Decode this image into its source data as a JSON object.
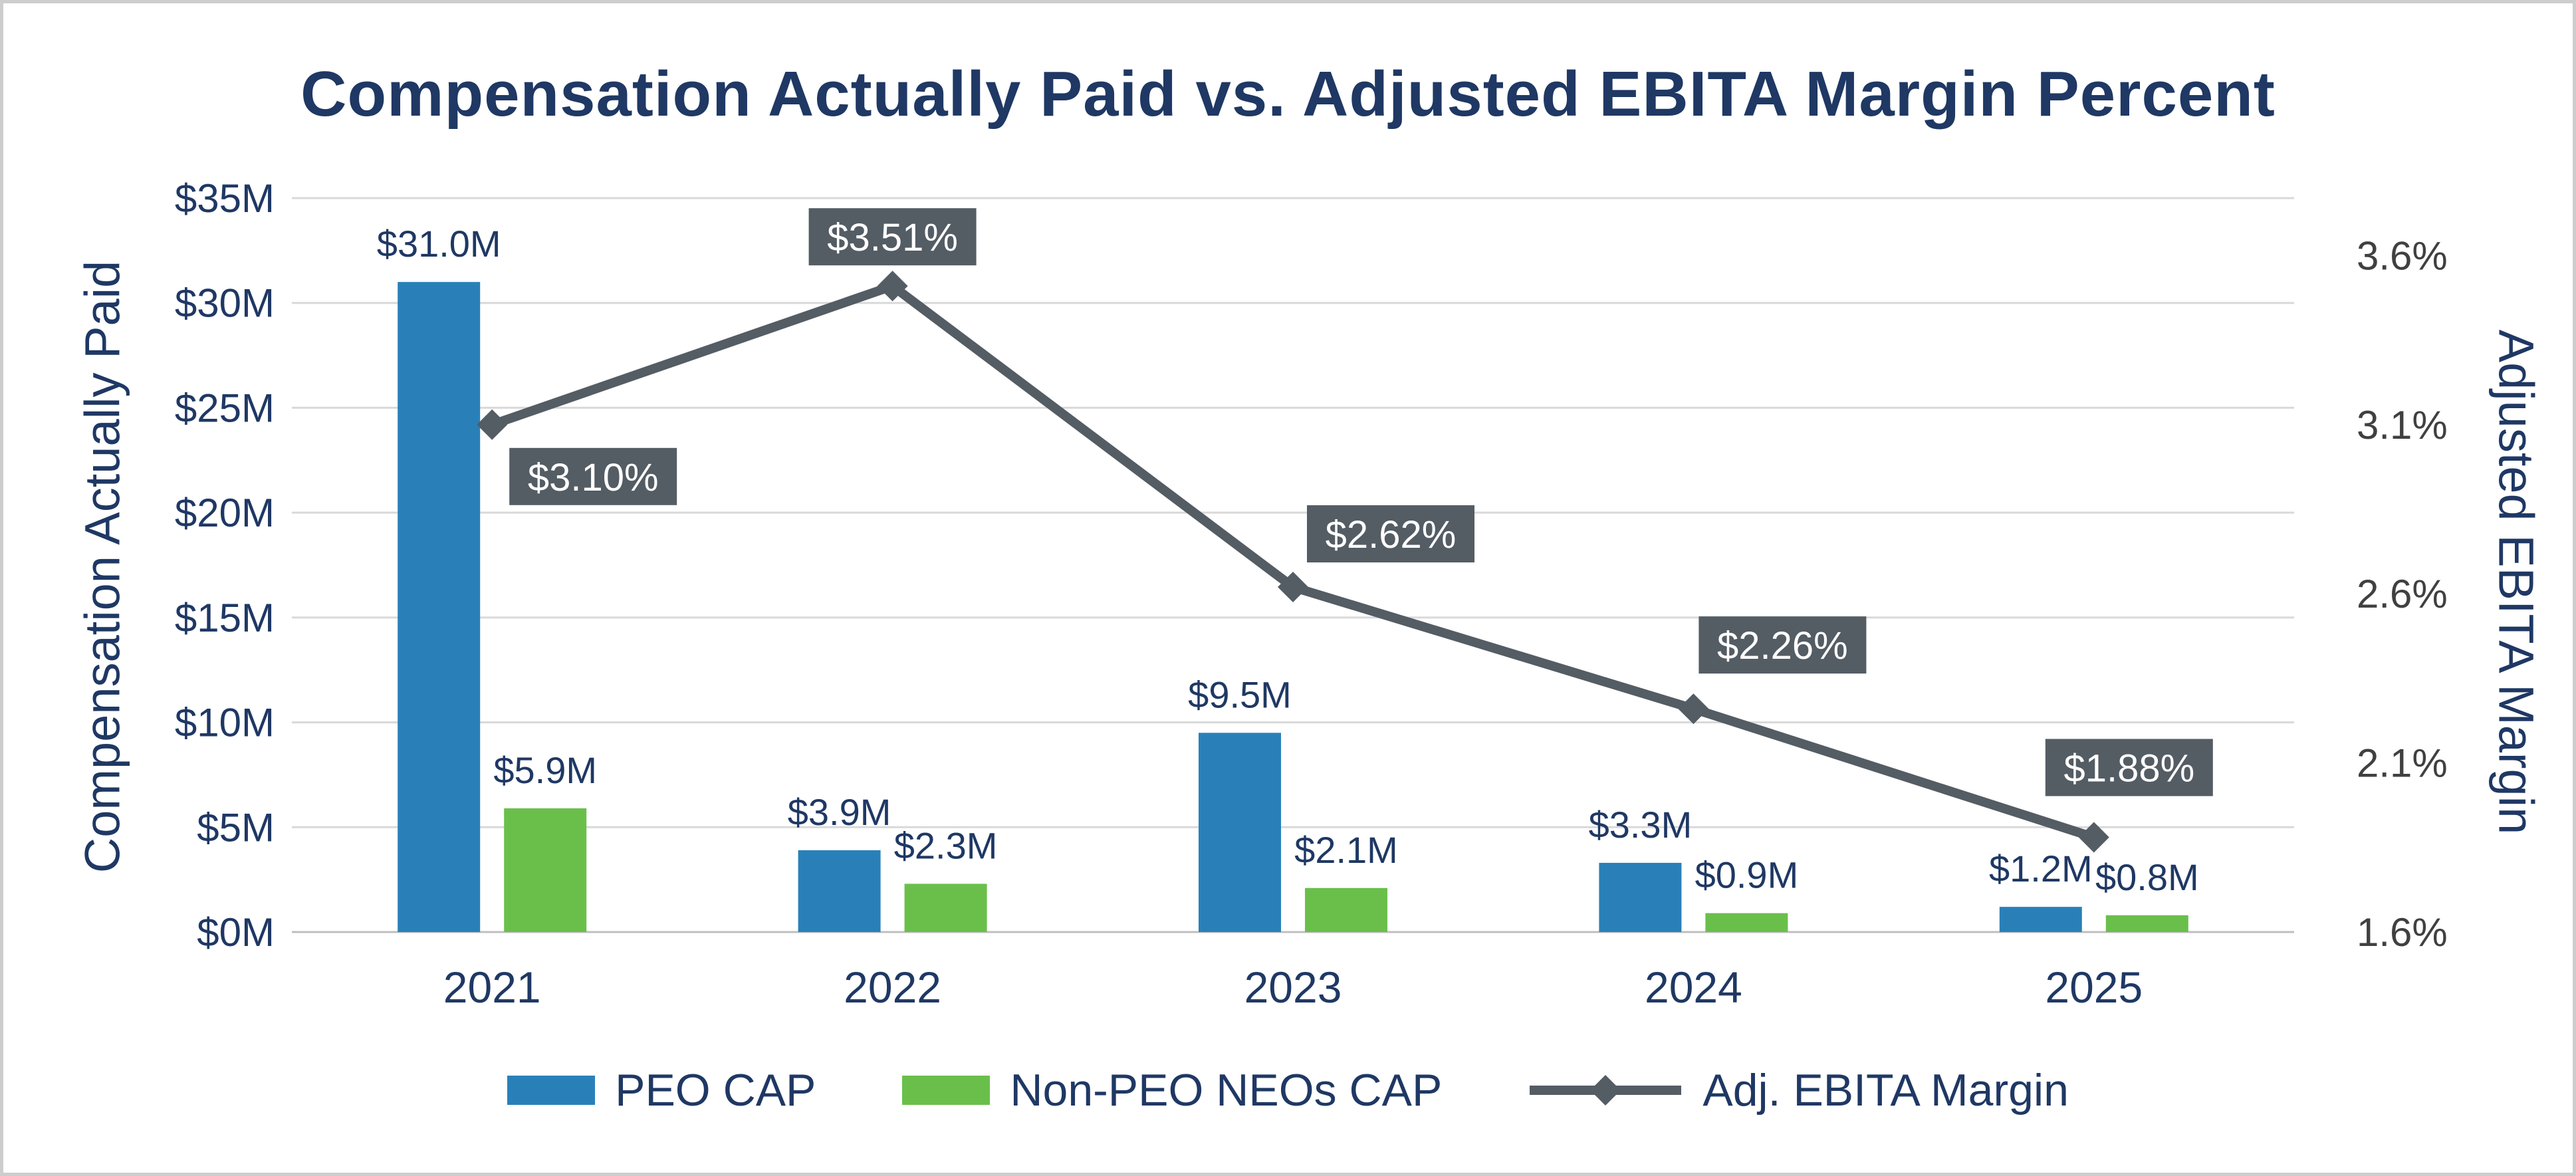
{
  "chart_data": {
    "type": "combo-bar-line",
    "title": "Compensation Actually Paid vs. Adjusted EBITA Margin Percent",
    "categories": [
      "2021",
      "2022",
      "2023",
      "2024",
      "2025"
    ],
    "left_axis": {
      "title": "Compensation Actually Paid",
      "ticks": [
        "$0M",
        "$5M",
        "$10M",
        "$15M",
        "$20M",
        "$25M",
        "$30M",
        "$35M"
      ],
      "min": 0,
      "max": 35,
      "unit": "M USD"
    },
    "right_axis": {
      "title": "Adjusted EBITA Margin",
      "ticks": [
        "1.6%",
        "2.1%",
        "2.6%",
        "3.1%",
        "3.6%"
      ],
      "min": 1.6,
      "max": 3.6,
      "unit": "%"
    },
    "series": [
      {
        "name": "PEO CAP",
        "type": "bar",
        "color": "#2980B9",
        "values": [
          31.0,
          3.9,
          9.5,
          3.3,
          1.2
        ],
        "labels": [
          "$31.0M",
          "$3.9M",
          "$9.5M",
          "$3.3M",
          "$1.2M"
        ]
      },
      {
        "name": "Non-PEO NEOs CAP",
        "type": "bar",
        "color": "#6ABF4B",
        "values": [
          5.9,
          2.3,
          2.1,
          0.9,
          0.8
        ],
        "labels": [
          "$5.9M",
          "$2.3M",
          "$2.1M",
          "$0.9M",
          "$0.8M"
        ]
      },
      {
        "name": "Adj. EBITA Margin",
        "type": "line",
        "color": "#545C64",
        "values": [
          3.1,
          3.51,
          2.62,
          2.26,
          1.88
        ],
        "labels": [
          "$3.10%",
          "$3.51%",
          "$2.62%",
          "$2.26%",
          "$1.88%"
        ]
      }
    ],
    "legend": [
      "PEO CAP",
      "Non-PEO NEOs CAP",
      "Adj. EBITA Margin"
    ],
    "grid": true,
    "legend_position": "bottom",
    "colors": {
      "text": "#1F3864",
      "right_tick": "#404040",
      "gridline": "#D9D9D9",
      "baseline": "#BFBFBF",
      "label_box": "#545C64",
      "label_box_text": "#FFFFFF"
    }
  }
}
